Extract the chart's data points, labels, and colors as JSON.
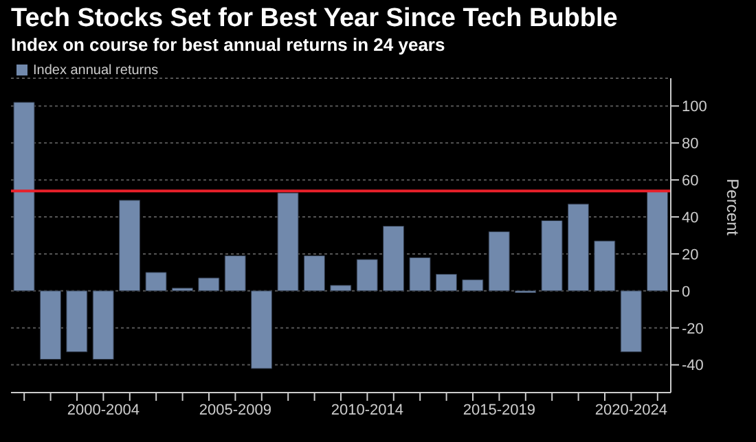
{
  "chart_data": {
    "type": "bar",
    "title": "Tech Stocks Set for Best Year Since Tech Bubble",
    "subtitle": "Index on course for best annual returns in 24 years",
    "ylabel": "Percent",
    "categories": [
      null,
      null,
      null,
      "2000-2004",
      null,
      null,
      null,
      null,
      "2005-2009",
      null,
      null,
      null,
      null,
      "2010-2014",
      null,
      null,
      null,
      null,
      "2015-2019",
      null,
      null,
      null,
      null,
      "2020-2024",
      null
    ],
    "series": [
      {
        "name": "Index annual returns",
        "color": "#7189ac",
        "values": [
          102,
          -37,
          -33,
          -37,
          49,
          10,
          1.5,
          7,
          19,
          -42,
          53,
          19,
          3,
          17,
          35,
          18,
          9,
          6,
          32,
          -1,
          38,
          47,
          27,
          -33,
          54
        ]
      }
    ],
    "ylim": [
      -55,
      115
    ],
    "yticks": [
      -40,
      -20,
      0,
      20,
      40,
      60,
      80,
      100
    ],
    "ref_lines": [
      {
        "axis": "y",
        "value": 54,
        "color": "#e8202a"
      }
    ],
    "grid": "y",
    "legend": "top left"
  }
}
